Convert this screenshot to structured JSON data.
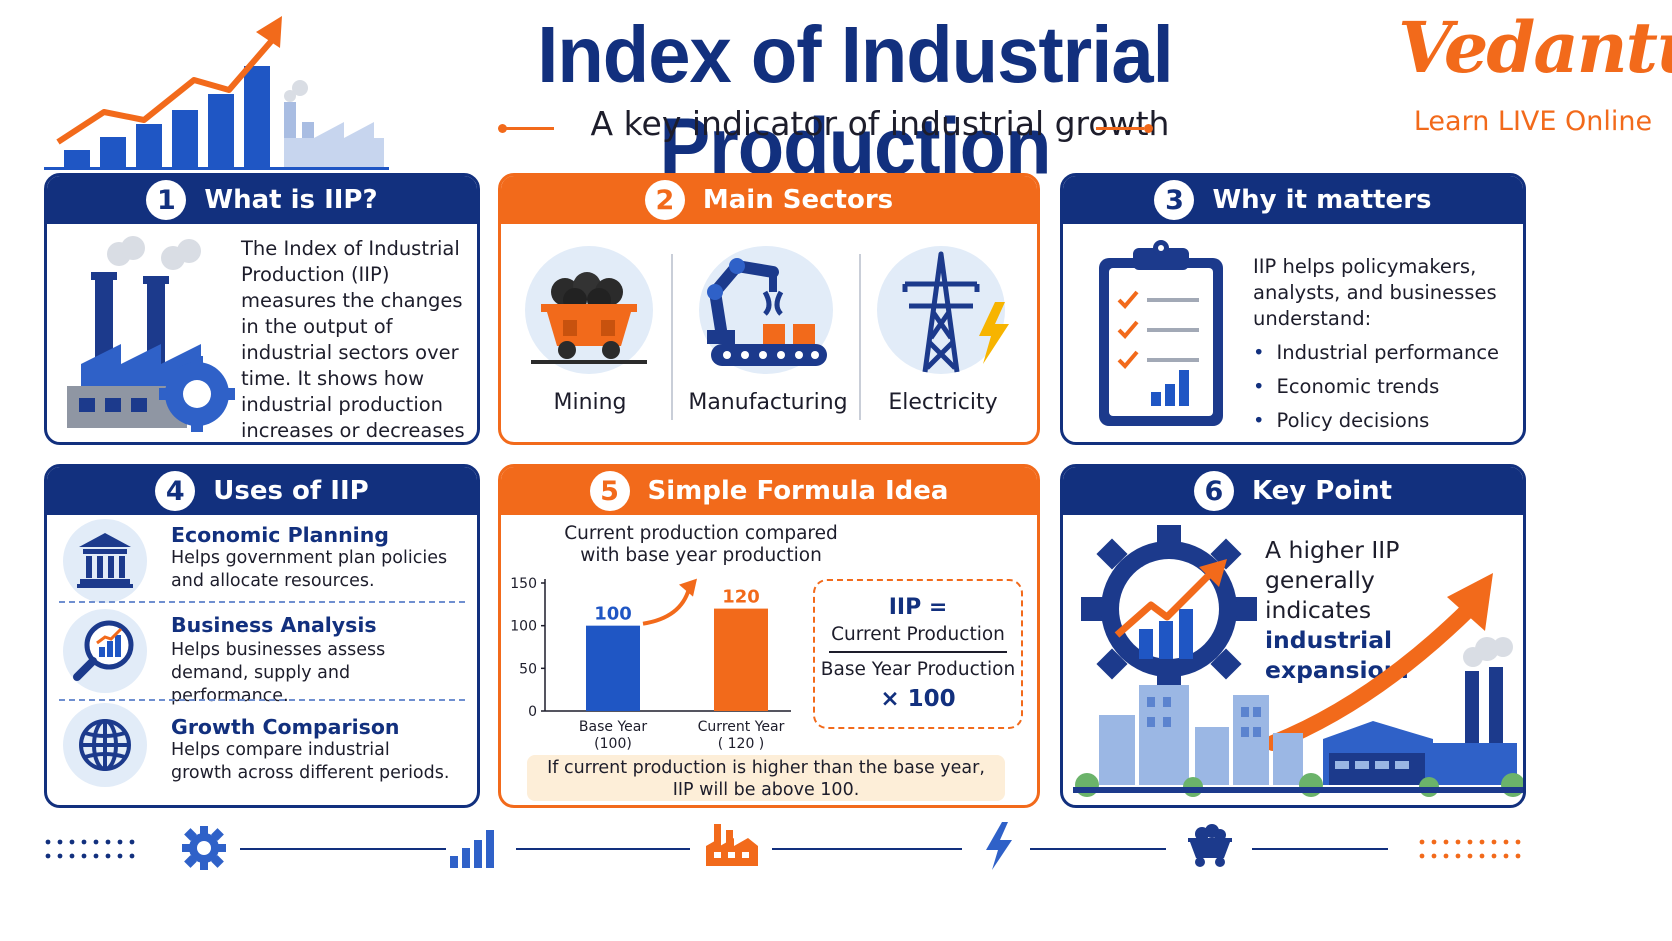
{
  "header": {
    "title": "Index of Industrial Production",
    "subtitle": "A key indicator of industrial growth",
    "brand": "Vedantu",
    "brand_tagline": "Learn LIVE Online"
  },
  "colors": {
    "navy": "#12307e",
    "orange": "#f26a1b",
    "light_blue": "#e2ecf8",
    "cream": "#fdeed8"
  },
  "cards": {
    "what": {
      "number": "1",
      "title": "What is IIP?",
      "text": "The Index of Industrial Production (IIP) measures the changes in the output of industrial sectors over time. It shows how industrial production increases or decreases compared to a base year.",
      "icon": "factory-gear-icon"
    },
    "sectors": {
      "number": "2",
      "title": "Main Sectors",
      "items": [
        {
          "label": "Mining",
          "icon": "mine-cart-icon"
        },
        {
          "label": "Manufacturing",
          "icon": "robot-arm-icon"
        },
        {
          "label": "Electricity",
          "icon": "power-tower-icon"
        }
      ]
    },
    "why": {
      "number": "3",
      "title": "Why it matters",
      "intro": "IIP helps policymakers, analysts, and businesses understand:",
      "bullets": [
        "Industrial performance",
        "Economic trends",
        "Policy decisions"
      ],
      "icon": "clipboard-checklist-icon"
    },
    "uses": {
      "number": "4",
      "title": "Uses of IIP",
      "items": [
        {
          "title": "Economic Planning",
          "desc": "Helps government plan policies and allocate resources.",
          "icon": "government-building-icon"
        },
        {
          "title": "Business Analysis",
          "desc": "Helps businesses assess demand, supply and performance.",
          "icon": "magnifier-chart-icon"
        },
        {
          "title": "Growth Comparison",
          "desc": "Helps compare industrial growth across different periods.",
          "icon": "globe-icon"
        }
      ]
    },
    "formula": {
      "number": "5",
      "title": "Simple Formula Idea",
      "caption_line1": "Current production compared",
      "caption_line2": "with base year production",
      "lhs": "IIP =",
      "numerator": "Current Production",
      "denominator": "Base Year Production",
      "multiplier": "× 100",
      "note_line1": "If current production is higher than the base year,",
      "note_line2": "IIP will be above 100."
    },
    "key": {
      "number": "6",
      "title": "Key Point",
      "text_plain": [
        "A higher IIP",
        "generally",
        "indicates"
      ],
      "text_bold": [
        "industrial",
        "expansion."
      ],
      "icon": "gear-growth-icon"
    }
  },
  "chart_data": {
    "type": "bar",
    "categories": [
      "Base Year\n(100)",
      "Current Year\n( 120 )"
    ],
    "category_lines": [
      [
        "Base Year",
        "(100)"
      ],
      [
        "Current Year",
        "( 120 )"
      ]
    ],
    "values": [
      100,
      120
    ],
    "value_labels": [
      "100",
      "120"
    ],
    "bar_colors": [
      "#1f56c4",
      "#f26a1b"
    ],
    "yticks": [
      "150",
      "100",
      "50",
      "0"
    ],
    "ylim": [
      0,
      150
    ],
    "title": "",
    "xlabel": "",
    "ylabel": ""
  },
  "footer": {
    "icons": [
      "gear-icon",
      "bar-chart-icon",
      "factory-icon",
      "lightning-icon",
      "mine-cart-icon"
    ]
  }
}
